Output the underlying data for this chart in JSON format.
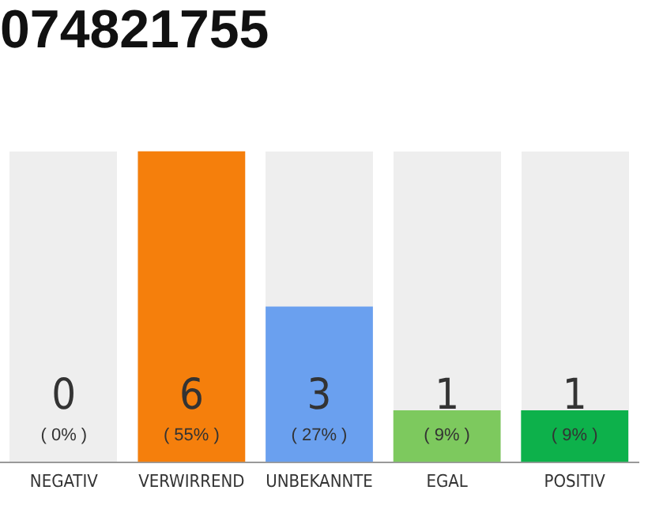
{
  "chart_data": {
    "type": "bar",
    "title": "074821755",
    "categories": [
      "NEGATIV",
      "VERWIRREND",
      "UNBEKANNTE",
      "EGAL",
      "POSITIV"
    ],
    "values": [
      0,
      6,
      3,
      1,
      1
    ],
    "colors": [
      "#f57f0c",
      "#f57f0c",
      "#6aa0ef",
      "#7dc95e",
      "#0db14b"
    ],
    "tick_labels": "x",
    "value_labels": [
      "0\n( 0% )",
      "6\n( 55% )",
      "3\n( 27% )",
      "1\n( 9% )",
      "1\n( 9% )"
    ],
    "legend": false,
    "grid": false
  }
}
